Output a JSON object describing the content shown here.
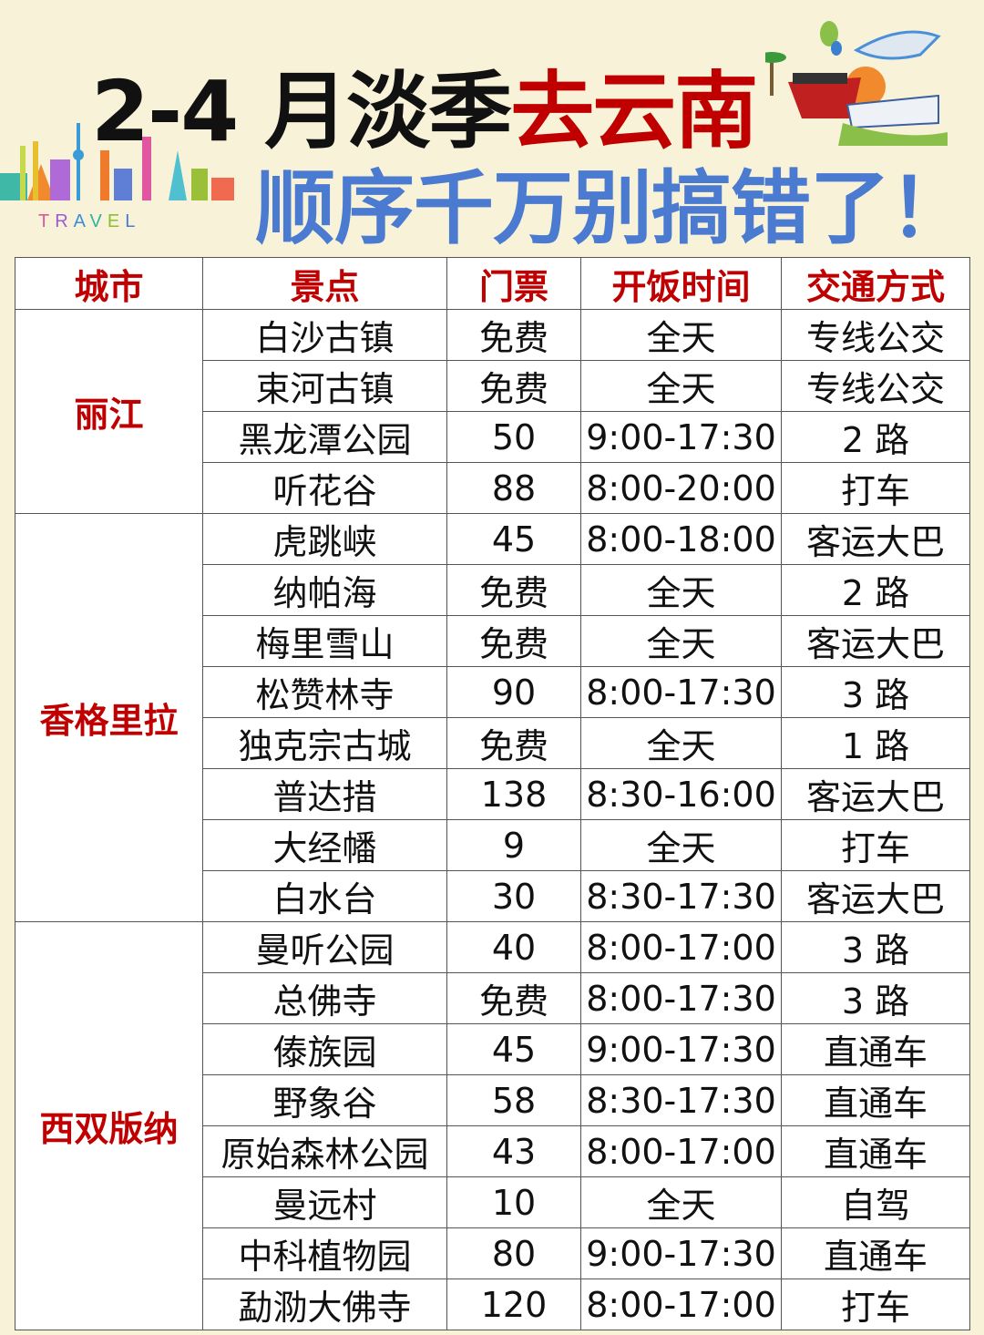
{
  "title": {
    "line1_black": "2-4 月淡季",
    "line1_red": "去云南",
    "line2": "顺序千万别搞错了！",
    "logo_text": "TRAVEL"
  },
  "colors": {
    "background": "#f8f2d8",
    "title_red": "#c00000",
    "title_blue": "#4a7bd0",
    "header_text": "#c00000"
  },
  "table": {
    "headers": [
      "城市",
      "景点",
      "门票",
      "开饭时间",
      "交通方式"
    ],
    "groups": [
      {
        "city": "丽江",
        "rows": [
          [
            "白沙古镇",
            "免费",
            "全天",
            "专线公交"
          ],
          [
            "束河古镇",
            "免费",
            "全天",
            "专线公交"
          ],
          [
            "黑龙潭公园",
            "50",
            "9:00-17:30",
            "2 路"
          ],
          [
            "听花谷",
            "88",
            "8:00-20:00",
            "打车"
          ]
        ]
      },
      {
        "city": "香格里拉",
        "rows": [
          [
            "虎跳峡",
            "45",
            "8:00-18:00",
            "客运大巴"
          ],
          [
            "纳帕海",
            "免费",
            "全天",
            "2 路"
          ],
          [
            "梅里雪山",
            "免费",
            "全天",
            "客运大巴"
          ],
          [
            "松赞林寺",
            "90",
            "8:00-17:30",
            "3 路"
          ],
          [
            "独克宗古城",
            "免费",
            "全天",
            "1 路"
          ],
          [
            "普达措",
            "138",
            "8:30-16:00",
            "客运大巴"
          ],
          [
            "大经幡",
            "9",
            "全天",
            "打车"
          ],
          [
            "白水台",
            "30",
            "8:30-17:30",
            "客运大巴"
          ]
        ]
      },
      {
        "city": "西双版纳",
        "rows": [
          [
            "曼听公园",
            "40",
            "8:00-17:00",
            "3 路"
          ],
          [
            "总佛寺",
            "免费",
            "8:00-17:30",
            "3 路"
          ],
          [
            "傣族园",
            "45",
            "9:00-17:30",
            "直通车"
          ],
          [
            "野象谷",
            "58",
            "8:30-17:30",
            "直通车"
          ],
          [
            "原始森林公园",
            "43",
            "8:00-17:00",
            "直通车"
          ],
          [
            "曼远村",
            "10",
            "全天",
            "自驾"
          ],
          [
            "中科植物园",
            "80",
            "9:00-17:30",
            "直通车"
          ],
          [
            "勐泐大佛寺",
            "120",
            "8:00-17:00",
            "打车"
          ]
        ]
      }
    ]
  }
}
